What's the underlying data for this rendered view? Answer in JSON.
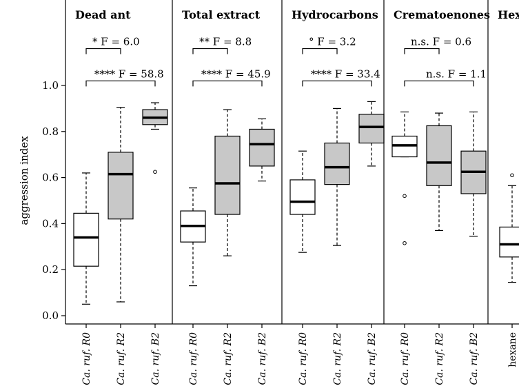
{
  "chart_data": {
    "type": "box",
    "ylabel": "aggression index",
    "ylim": [
      0,
      1.0
    ],
    "yticks": [
      {
        "value": 0.0,
        "label": "0.0"
      },
      {
        "value": 0.2,
        "label": "0.2"
      },
      {
        "value": 0.4,
        "label": "0.4"
      },
      {
        "value": 0.6,
        "label": "0.6"
      },
      {
        "value": 0.8,
        "label": "0.8"
      },
      {
        "value": 1.0,
        "label": "1.0"
      }
    ],
    "colors": {
      "white_box": "#ffffff",
      "grey_box": "#c8c8c8",
      "line": "#000000"
    },
    "panels": [
      {
        "title": "Dead ant",
        "boxes": [
          {
            "label": "Ca. ruf. R0",
            "fill": "white",
            "whisker_low": 0.05,
            "q1": 0.215,
            "median": 0.34,
            "q3": 0.445,
            "whisker_high": 0.62,
            "outliers": []
          },
          {
            "label": "Ca. ruf. R2",
            "fill": "grey",
            "whisker_low": 0.06,
            "q1": 0.42,
            "median": 0.615,
            "q3": 0.71,
            "whisker_high": 0.905,
            "outliers": []
          },
          {
            "label": "Ca. ruf. B2",
            "fill": "grey",
            "whisker_low": 0.81,
            "q1": 0.83,
            "median": 0.86,
            "q3": 0.895,
            "whisker_high": 0.925,
            "outliers": [
              0.625
            ]
          }
        ],
        "comparisons": [
          {
            "text": "* F = 6.0",
            "from": 0,
            "to": 1
          },
          {
            "text": "**** F = 58.8",
            "from": 0,
            "to": 2
          }
        ]
      },
      {
        "title": "Total extract",
        "boxes": [
          {
            "label": "Ca. ruf. R0",
            "fill": "white",
            "whisker_low": 0.13,
            "q1": 0.32,
            "median": 0.39,
            "q3": 0.455,
            "whisker_high": 0.555,
            "outliers": []
          },
          {
            "label": "Ca. ruf. R2",
            "fill": "grey",
            "whisker_low": 0.26,
            "q1": 0.44,
            "median": 0.575,
            "q3": 0.78,
            "whisker_high": 0.895,
            "outliers": []
          },
          {
            "label": "Ca. ruf. B2",
            "fill": "grey",
            "whisker_low": 0.585,
            "q1": 0.65,
            "median": 0.745,
            "q3": 0.81,
            "whisker_high": 0.855,
            "outliers": []
          }
        ],
        "comparisons": [
          {
            "text": "** F = 8.8",
            "from": 0,
            "to": 1
          },
          {
            "text": "**** F = 45.9",
            "from": 0,
            "to": 2
          }
        ]
      },
      {
        "title": "Hydrocarbons",
        "boxes": [
          {
            "label": "Ca. ruf. R0",
            "fill": "white",
            "whisker_low": 0.275,
            "q1": 0.44,
            "median": 0.495,
            "q3": 0.59,
            "whisker_high": 0.715,
            "outliers": []
          },
          {
            "label": "Ca. ruf. R2",
            "fill": "grey",
            "whisker_low": 0.305,
            "q1": 0.57,
            "median": 0.645,
            "q3": 0.75,
            "whisker_high": 0.9,
            "outliers": []
          },
          {
            "label": "Ca. ruf. B2",
            "fill": "grey",
            "whisker_low": 0.65,
            "q1": 0.75,
            "median": 0.82,
            "q3": 0.875,
            "whisker_high": 0.93,
            "outliers": []
          }
        ],
        "comparisons": [
          {
            "text": "° F = 3.2",
            "from": 0,
            "to": 1
          },
          {
            "text": "**** F = 33.4",
            "from": 0,
            "to": 2
          }
        ]
      },
      {
        "title": "Crematoenones",
        "boxes": [
          {
            "label": "Ca. ruf. R0",
            "fill": "white",
            "whisker_low": 0.69,
            "q1": 0.69,
            "median": 0.74,
            "q3": 0.78,
            "whisker_high": 0.885,
            "outliers": [
              0.52,
              0.315
            ]
          },
          {
            "label": "Ca. ruf. R2",
            "fill": "grey",
            "whisker_low": 0.37,
            "q1": 0.565,
            "median": 0.665,
            "q3": 0.825,
            "whisker_high": 0.88,
            "outliers": []
          },
          {
            "label": "Ca. ruf. B2",
            "fill": "grey",
            "whisker_low": 0.345,
            "q1": 0.53,
            "median": 0.625,
            "q3": 0.715,
            "whisker_high": 0.885,
            "outliers": []
          }
        ],
        "comparisons": [
          {
            "text": "n.s. F = 0.6",
            "from": 0,
            "to": 1
          },
          {
            "text": "n.s. F = 1.1",
            "from": 0,
            "to": 2
          }
        ]
      },
      {
        "title": "Hex.",
        "boxes": [
          {
            "label": "hexane",
            "fill": "white",
            "whisker_low": 0.145,
            "q1": 0.255,
            "median": 0.31,
            "q3": 0.385,
            "whisker_high": 0.565,
            "outliers": [
              0.61
            ]
          }
        ],
        "comparisons": []
      }
    ]
  }
}
